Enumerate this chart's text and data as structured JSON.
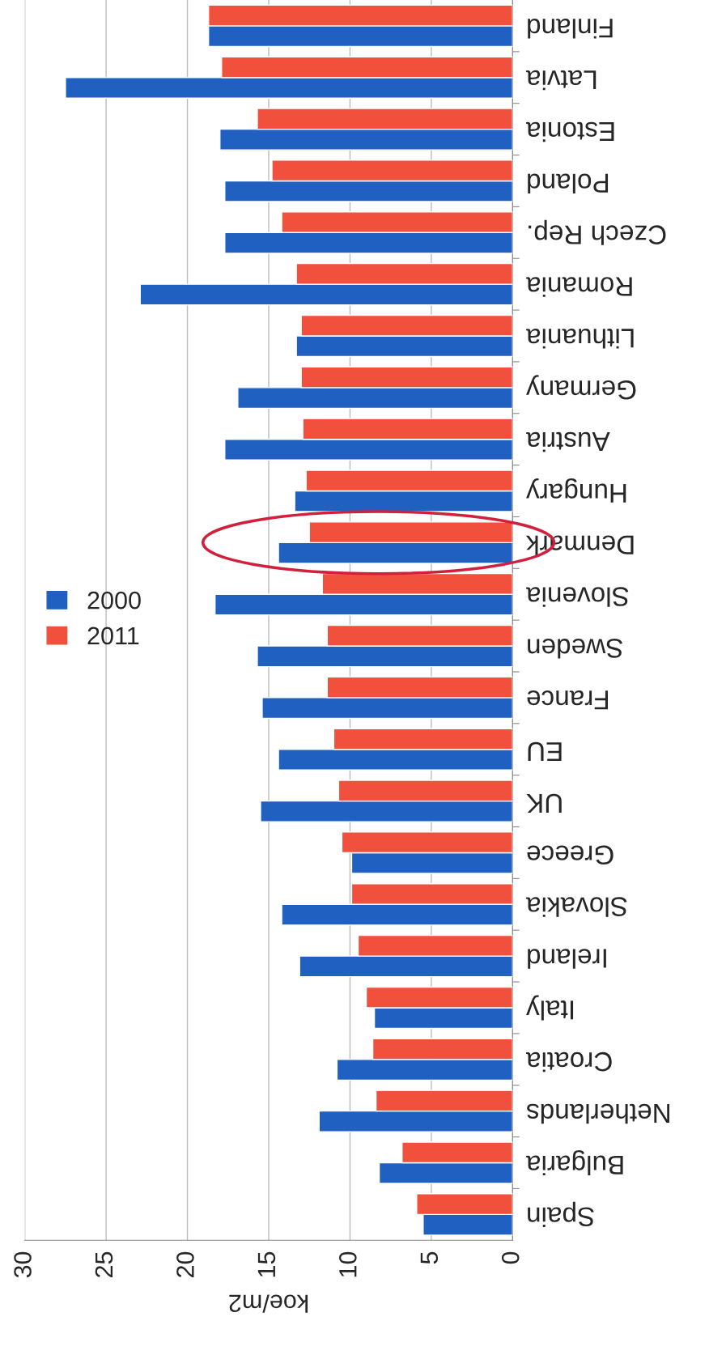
{
  "chart_data": {
    "type": "bar",
    "orientation": "horizontal",
    "xlabel": "koe/m2",
    "categories": [
      "Finland",
      "Latvia",
      "Estonia",
      "Poland",
      "Czech Rep.",
      "Romania",
      "Lithuania",
      "Germany",
      "Austria",
      "Hungary",
      "Denmark",
      "Slovenia",
      "Sweden",
      "France",
      "EU",
      "UK",
      "Greece",
      "Slovakia",
      "Ireland",
      "Italy",
      "Croatia",
      "Netherlands",
      "Bulgaria",
      "Spain"
    ],
    "series": [
      {
        "name": "2000",
        "color": "#2060c0",
        "values": [
          18.7,
          27.5,
          18.0,
          17.7,
          17.7,
          22.9,
          13.3,
          16.9,
          17.7,
          13.4,
          14.4,
          18.3,
          15.7,
          15.4,
          14.4,
          15.5,
          9.9,
          14.2,
          13.1,
          8.5,
          10.8,
          11.9,
          8.2,
          5.5
        ]
      },
      {
        "name": "2011",
        "color": "#f0503c",
        "values": [
          18.7,
          17.9,
          15.7,
          14.8,
          14.2,
          13.3,
          13.0,
          13.0,
          12.9,
          12.7,
          12.5,
          11.7,
          11.4,
          11.4,
          11.0,
          10.7,
          10.5,
          9.9,
          9.5,
          9.0,
          8.6,
          8.4,
          6.8,
          5.9
        ]
      }
    ],
    "xlim": [
      30,
      0
    ],
    "xticks": [
      0,
      5,
      10,
      15,
      20,
      25,
      30
    ],
    "grid": "x",
    "legend": "left"
  }
}
